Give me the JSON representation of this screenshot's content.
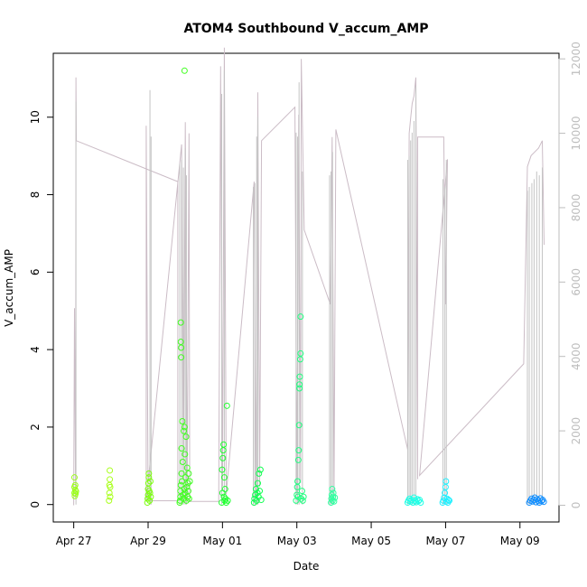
{
  "chart_data": {
    "type": "scatter",
    "title": "ATOM4 Southbound V_accum_AMP",
    "xlabel": "Date",
    "ylabel": "V_accum_AMP",
    "x_ticks": [
      "Apr 27",
      "Apr 29",
      "May 01",
      "May 03",
      "May 05",
      "May 07",
      "May 09"
    ],
    "x_tick_days": [
      0,
      2,
      4,
      6,
      8,
      10,
      12
    ],
    "x_range_days": [
      -0.55,
      13.05
    ],
    "y_left": {
      "ticks": [
        0,
        2,
        4,
        6,
        8,
        10
      ],
      "range": [
        -0.45,
        11.65
      ]
    },
    "y_right": {
      "ticks": [
        0,
        2000,
        4000,
        6000,
        8000,
        10000,
        12000
      ],
      "range": [
        -450,
        12150
      ],
      "color": "#bdbdbd"
    },
    "colors": {
      "line": "#c4c4c4",
      "secondary_line": "#cbbcc6"
    },
    "points": [
      {
        "x": 0.02,
        "y": 0.3,
        "c": "#9cff1a"
      },
      {
        "x": 0.02,
        "y": 0.45,
        "c": "#9cff1a"
      },
      {
        "x": 0.02,
        "y": 0.7,
        "c": "#9cff1a"
      },
      {
        "x": 0.03,
        "y": 0.22,
        "c": "#9cff1a"
      },
      {
        "x": 0.04,
        "y": 0.38,
        "c": "#9cff1a"
      },
      {
        "x": 0.04,
        "y": 0.5,
        "c": "#9cff1a"
      },
      {
        "x": 0.05,
        "y": 0.28,
        "c": "#9cff1a"
      },
      {
        "x": 0.06,
        "y": 0.34,
        "c": "#9cff1a"
      },
      {
        "x": 0.95,
        "y": 0.1,
        "c": "#a8ff1a"
      },
      {
        "x": 0.96,
        "y": 0.3,
        "c": "#a8ff1a"
      },
      {
        "x": 0.96,
        "y": 0.5,
        "c": "#a8ff1a"
      },
      {
        "x": 0.97,
        "y": 0.65,
        "c": "#a8ff1a"
      },
      {
        "x": 0.97,
        "y": 0.88,
        "c": "#a8ff1a"
      },
      {
        "x": 0.98,
        "y": 0.2,
        "c": "#a8ff1a"
      },
      {
        "x": 0.98,
        "y": 0.45,
        "c": "#a8ff1a"
      },
      {
        "x": 1.98,
        "y": 0.05,
        "c": "#7dff10"
      },
      {
        "x": 1.99,
        "y": 0.15,
        "c": "#7dff10"
      },
      {
        "x": 2.0,
        "y": 0.25,
        "c": "#7dff10"
      },
      {
        "x": 2.0,
        "y": 0.4,
        "c": "#7dff10"
      },
      {
        "x": 2.01,
        "y": 0.55,
        "c": "#7dff10"
      },
      {
        "x": 2.02,
        "y": 0.7,
        "c": "#7dff10"
      },
      {
        "x": 2.02,
        "y": 0.8,
        "c": "#7dff10"
      },
      {
        "x": 2.03,
        "y": 0.35,
        "c": "#7dff10"
      },
      {
        "x": 2.04,
        "y": 0.1,
        "c": "#7dff10"
      },
      {
        "x": 2.05,
        "y": 0.3,
        "c": "#7dff10"
      },
      {
        "x": 2.06,
        "y": 0.6,
        "c": "#7dff10"
      },
      {
        "x": 2.07,
        "y": 0.2,
        "c": "#7dff10"
      },
      {
        "x": 2.85,
        "y": 0.05,
        "c": "#40ff20"
      },
      {
        "x": 2.86,
        "y": 0.1,
        "c": "#40ff20"
      },
      {
        "x": 2.87,
        "y": 0.2,
        "c": "#40ff20"
      },
      {
        "x": 2.87,
        "y": 0.35,
        "c": "#40ff20"
      },
      {
        "x": 2.88,
        "y": 0.5,
        "c": "#40ff20"
      },
      {
        "x": 2.88,
        "y": 4.7,
        "c": "#40ff20"
      },
      {
        "x": 2.88,
        "y": 4.2,
        "c": "#40ff20"
      },
      {
        "x": 2.89,
        "y": 4.05,
        "c": "#40ff20"
      },
      {
        "x": 2.89,
        "y": 3.8,
        "c": "#40ff20"
      },
      {
        "x": 2.9,
        "y": 1.45,
        "c": "#40ff20"
      },
      {
        "x": 2.9,
        "y": 0.8,
        "c": "#40ff20"
      },
      {
        "x": 2.91,
        "y": 0.6,
        "c": "#40ff20"
      },
      {
        "x": 2.92,
        "y": 2.15,
        "c": "#40ff20"
      },
      {
        "x": 2.93,
        "y": 1.1,
        "c": "#40ff20"
      },
      {
        "x": 2.94,
        "y": 0.25,
        "c": "#40ff20"
      },
      {
        "x": 2.95,
        "y": 0.15,
        "c": "#40ff20"
      },
      {
        "x": 2.96,
        "y": 1.9,
        "c": "#40ff20"
      },
      {
        "x": 2.97,
        "y": 0.4,
        "c": "#40ff20"
      },
      {
        "x": 2.98,
        "y": 11.2,
        "c": "#40ff20"
      },
      {
        "x": 2.98,
        "y": 2.0,
        "c": "#40ff20"
      },
      {
        "x": 2.99,
        "y": 1.3,
        "c": "#40ff20"
      },
      {
        "x": 3.0,
        "y": 0.3,
        "c": "#40ff20"
      },
      {
        "x": 3.01,
        "y": 0.7,
        "c": "#40ff20"
      },
      {
        "x": 3.02,
        "y": 1.75,
        "c": "#40ff20"
      },
      {
        "x": 3.03,
        "y": 0.1,
        "c": "#40ff20"
      },
      {
        "x": 3.04,
        "y": 0.45,
        "c": "#40ff20"
      },
      {
        "x": 3.05,
        "y": 0.95,
        "c": "#40ff20"
      },
      {
        "x": 3.06,
        "y": 0.2,
        "c": "#40ff20"
      },
      {
        "x": 3.07,
        "y": 0.55,
        "c": "#40ff20"
      },
      {
        "x": 3.08,
        "y": 0.35,
        "c": "#40ff20"
      },
      {
        "x": 3.09,
        "y": 0.8,
        "c": "#40ff20"
      },
      {
        "x": 3.1,
        "y": 0.15,
        "c": "#40ff20"
      },
      {
        "x": 3.12,
        "y": 0.6,
        "c": "#40ff20"
      },
      {
        "x": 3.98,
        "y": 0.05,
        "c": "#20ff30"
      },
      {
        "x": 3.99,
        "y": 0.9,
        "c": "#20ff30"
      },
      {
        "x": 4.0,
        "y": 0.3,
        "c": "#20ff30"
      },
      {
        "x": 4.01,
        "y": 1.2,
        "c": "#20ff30"
      },
      {
        "x": 4.02,
        "y": 1.4,
        "c": "#20ff30"
      },
      {
        "x": 4.03,
        "y": 1.55,
        "c": "#20ff30"
      },
      {
        "x": 4.04,
        "y": 0.2,
        "c": "#20ff30"
      },
      {
        "x": 4.05,
        "y": 0.7,
        "c": "#20ff30"
      },
      {
        "x": 4.06,
        "y": 0.1,
        "c": "#20ff30"
      },
      {
        "x": 4.07,
        "y": 0.4,
        "c": "#20ff30"
      },
      {
        "x": 4.08,
        "y": 0.15,
        "c": "#20ff30"
      },
      {
        "x": 4.1,
        "y": 0.05,
        "c": "#20ff30"
      },
      {
        "x": 4.12,
        "y": 2.55,
        "c": "#20ff30"
      },
      {
        "x": 4.14,
        "y": 0.1,
        "c": "#20ff30"
      },
      {
        "x": 4.85,
        "y": 0.05,
        "c": "#10ff50"
      },
      {
        "x": 4.86,
        "y": 0.15,
        "c": "#10ff50"
      },
      {
        "x": 4.88,
        "y": 0.25,
        "c": "#10ff50"
      },
      {
        "x": 4.9,
        "y": 0.4,
        "c": "#10ff50"
      },
      {
        "x": 4.92,
        "y": 0.1,
        "c": "#10ff50"
      },
      {
        "x": 4.94,
        "y": 0.3,
        "c": "#10ff50"
      },
      {
        "x": 4.95,
        "y": 0.55,
        "c": "#10ff50"
      },
      {
        "x": 4.97,
        "y": 0.2,
        "c": "#10ff50"
      },
      {
        "x": 4.98,
        "y": 0.8,
        "c": "#10ff50"
      },
      {
        "x": 5.0,
        "y": 0.35,
        "c": "#10ff50"
      },
      {
        "x": 5.02,
        "y": 0.9,
        "c": "#10ff50"
      },
      {
        "x": 5.04,
        "y": 0.12,
        "c": "#10ff50"
      },
      {
        "x": 5.98,
        "y": 0.1,
        "c": "#20ff80"
      },
      {
        "x": 6.0,
        "y": 0.25,
        "c": "#20ff80"
      },
      {
        "x": 6.01,
        "y": 0.45,
        "c": "#20ff80"
      },
      {
        "x": 6.02,
        "y": 0.6,
        "c": "#20ff80"
      },
      {
        "x": 6.03,
        "y": 0.2,
        "c": "#20ff80"
      },
      {
        "x": 6.04,
        "y": 1.15,
        "c": "#20ff80"
      },
      {
        "x": 6.05,
        "y": 1.4,
        "c": "#20ff80"
      },
      {
        "x": 6.06,
        "y": 2.05,
        "c": "#20ff80"
      },
      {
        "x": 6.07,
        "y": 3.0,
        "c": "#20ff80"
      },
      {
        "x": 6.07,
        "y": 3.1,
        "c": "#20ff80"
      },
      {
        "x": 6.08,
        "y": 3.3,
        "c": "#20ff80"
      },
      {
        "x": 6.09,
        "y": 3.75,
        "c": "#20ff80"
      },
      {
        "x": 6.1,
        "y": 3.9,
        "c": "#20ff80"
      },
      {
        "x": 6.1,
        "y": 4.85,
        "c": "#20ff80"
      },
      {
        "x": 6.12,
        "y": 0.15,
        "c": "#20ff80"
      },
      {
        "x": 6.14,
        "y": 0.35,
        "c": "#20ff80"
      },
      {
        "x": 6.16,
        "y": 0.1,
        "c": "#20ff80"
      },
      {
        "x": 6.18,
        "y": 0.2,
        "c": "#20ff80"
      },
      {
        "x": 6.92,
        "y": 0.05,
        "c": "#30ffa0"
      },
      {
        "x": 6.93,
        "y": 0.15,
        "c": "#30ffa0"
      },
      {
        "x": 6.94,
        "y": 0.25,
        "c": "#30ffa0"
      },
      {
        "x": 6.95,
        "y": 0.4,
        "c": "#30ffa0"
      },
      {
        "x": 6.96,
        "y": 0.1,
        "c": "#30ffa0"
      },
      {
        "x": 6.97,
        "y": 0.2,
        "c": "#30ffa0"
      },
      {
        "x": 6.98,
        "y": 0.3,
        "c": "#30ffa0"
      },
      {
        "x": 7.0,
        "y": 0.08,
        "c": "#30ffa0"
      },
      {
        "x": 7.02,
        "y": 0.18,
        "c": "#30ffa0"
      },
      {
        "x": 8.98,
        "y": 0.05,
        "c": "#20ffe6"
      },
      {
        "x": 9.0,
        "y": 0.1,
        "c": "#20ffe6"
      },
      {
        "x": 9.03,
        "y": 0.15,
        "c": "#20ffe6"
      },
      {
        "x": 9.06,
        "y": 0.08,
        "c": "#20ffe6"
      },
      {
        "x": 9.09,
        "y": 0.12,
        "c": "#20ffe6"
      },
      {
        "x": 9.12,
        "y": 0.05,
        "c": "#20ffe6"
      },
      {
        "x": 9.15,
        "y": 0.18,
        "c": "#20ffe6"
      },
      {
        "x": 9.18,
        "y": 0.1,
        "c": "#20ffe6"
      },
      {
        "x": 9.21,
        "y": 0.06,
        "c": "#20ffe6"
      },
      {
        "x": 9.24,
        "y": 0.14,
        "c": "#20ffe6"
      },
      {
        "x": 9.27,
        "y": 0.09,
        "c": "#20ffe6"
      },
      {
        "x": 9.3,
        "y": 0.12,
        "c": "#20ffe6"
      },
      {
        "x": 9.33,
        "y": 0.05,
        "c": "#20ffe6"
      },
      {
        "x": 9.92,
        "y": 0.05,
        "c": "#20f0ff"
      },
      {
        "x": 9.94,
        "y": 0.1,
        "c": "#20f0ff"
      },
      {
        "x": 9.96,
        "y": 0.18,
        "c": "#20f0ff"
      },
      {
        "x": 9.98,
        "y": 0.3,
        "c": "#20f0ff"
      },
      {
        "x": 10.0,
        "y": 0.45,
        "c": "#20f0ff"
      },
      {
        "x": 10.01,
        "y": 0.6,
        "c": "#20f0ff"
      },
      {
        "x": 10.02,
        "y": 0.08,
        "c": "#20f0ff"
      },
      {
        "x": 10.04,
        "y": 0.15,
        "c": "#20f0ff"
      },
      {
        "x": 10.06,
        "y": 0.05,
        "c": "#20f0ff"
      },
      {
        "x": 10.08,
        "y": 0.12,
        "c": "#20f0ff"
      },
      {
        "x": 10.1,
        "y": 0.1,
        "c": "#20f0ff"
      },
      {
        "x": 12.25,
        "y": 0.05,
        "c": "#1490ff"
      },
      {
        "x": 12.28,
        "y": 0.1,
        "c": "#1490ff"
      },
      {
        "x": 12.31,
        "y": 0.15,
        "c": "#1490ff"
      },
      {
        "x": 12.34,
        "y": 0.08,
        "c": "#1490ff"
      },
      {
        "x": 12.37,
        "y": 0.12,
        "c": "#1490ff"
      },
      {
        "x": 12.4,
        "y": 0.18,
        "c": "#1490ff"
      },
      {
        "x": 12.43,
        "y": 0.06,
        "c": "#1490ff"
      },
      {
        "x": 12.46,
        "y": 0.14,
        "c": "#1490ff"
      },
      {
        "x": 12.49,
        "y": 0.1,
        "c": "#1490ff"
      },
      {
        "x": 12.52,
        "y": 0.05,
        "c": "#1490ff"
      },
      {
        "x": 12.55,
        "y": 0.16,
        "c": "#1490ff"
      },
      {
        "x": 12.58,
        "y": 0.09,
        "c": "#1490ff"
      },
      {
        "x": 12.61,
        "y": 0.12,
        "c": "#1490ff"
      },
      {
        "x": 12.64,
        "y": 0.07,
        "c": "#1490ff"
      }
    ],
    "secondary_series": [
      {
        "x": 0.0,
        "y": 0
      },
      {
        "x": 0.02,
        "y": 5300
      },
      {
        "x": 0.05,
        "y": 200
      },
      {
        "x": 0.06,
        "y": 11500
      },
      {
        "x": 0.07,
        "y": 9800
      },
      {
        "x": 2.8,
        "y": 8700
      },
      {
        "x": 2.8,
        "y": 120
      },
      {
        "x": 2.0,
        "y": 120
      },
      {
        "x": 1.95,
        "y": 10200
      },
      {
        "x": 1.95,
        "y": 100
      },
      {
        "x": 2.9,
        "y": 9700
      },
      {
        "x": 2.95,
        "y": 200
      },
      {
        "x": 3.0,
        "y": 10300
      },
      {
        "x": 3.05,
        "y": 100
      },
      {
        "x": 3.1,
        "y": 10000
      },
      {
        "x": 3.12,
        "y": 100
      },
      {
        "x": 3.9,
        "y": 100
      },
      {
        "x": 3.95,
        "y": 11800
      },
      {
        "x": 4.0,
        "y": 500
      },
      {
        "x": 4.05,
        "y": 12300
      },
      {
        "x": 4.1,
        "y": 300
      },
      {
        "x": 4.85,
        "y": 8700
      },
      {
        "x": 4.9,
        "y": 200
      },
      {
        "x": 4.95,
        "y": 11100
      },
      {
        "x": 5.0,
        "y": 500
      },
      {
        "x": 5.05,
        "y": 9800
      },
      {
        "x": 5.95,
        "y": 10700
      },
      {
        "x": 6.0,
        "y": 300
      },
      {
        "x": 6.05,
        "y": 10500
      },
      {
        "x": 6.1,
        "y": 600
      },
      {
        "x": 6.12,
        "y": 12000
      },
      {
        "x": 6.2,
        "y": 7400
      },
      {
        "x": 6.9,
        "y": 5400
      },
      {
        "x": 6.95,
        "y": 9900
      },
      {
        "x": 7.0,
        "y": 200
      },
      {
        "x": 7.05,
        "y": 10100
      },
      {
        "x": 8.98,
        "y": 1500
      },
      {
        "x": 9.02,
        "y": 10000
      },
      {
        "x": 9.06,
        "y": 10400
      },
      {
        "x": 9.1,
        "y": 10800
      },
      {
        "x": 9.15,
        "y": 11000
      },
      {
        "x": 9.2,
        "y": 11500
      },
      {
        "x": 9.25,
        "y": 700
      },
      {
        "x": 9.25,
        "y": 9900
      },
      {
        "x": 9.95,
        "y": 9900
      },
      {
        "x": 10.0,
        "y": 5400
      },
      {
        "x": 10.05,
        "y": 9300
      },
      {
        "x": 9.3,
        "y": 800
      },
      {
        "x": 12.1,
        "y": 3800
      },
      {
        "x": 12.2,
        "y": 9100
      },
      {
        "x": 12.3,
        "y": 9400
      },
      {
        "x": 12.4,
        "y": 9500
      },
      {
        "x": 12.5,
        "y": 9600
      },
      {
        "x": 12.6,
        "y": 9800
      },
      {
        "x": 12.65,
        "y": 7000
      }
    ],
    "spikes": [
      {
        "x": 0.06,
        "y": 10.4
      },
      {
        "x": 2.05,
        "y": 10.7
      },
      {
        "x": 2.08,
        "y": 9.5
      },
      {
        "x": 2.85,
        "y": 8.8
      },
      {
        "x": 2.9,
        "y": 8.9
      },
      {
        "x": 2.95,
        "y": 8.7
      },
      {
        "x": 3.0,
        "y": 9.2
      },
      {
        "x": 3.03,
        "y": 8.5
      },
      {
        "x": 3.98,
        "y": 10.6
      },
      {
        "x": 4.05,
        "y": 11.2
      },
      {
        "x": 4.83,
        "y": 8.2
      },
      {
        "x": 4.87,
        "y": 8.3
      },
      {
        "x": 4.92,
        "y": 9.5
      },
      {
        "x": 4.95,
        "y": 10.0
      },
      {
        "x": 5.98,
        "y": 9.6
      },
      {
        "x": 6.02,
        "y": 9.5
      },
      {
        "x": 6.06,
        "y": 10.9
      },
      {
        "x": 6.15,
        "y": 8.6
      },
      {
        "x": 6.88,
        "y": 8.5
      },
      {
        "x": 6.92,
        "y": 8.6
      },
      {
        "x": 6.96,
        "y": 9.1
      },
      {
        "x": 8.98,
        "y": 8.9
      },
      {
        "x": 9.02,
        "y": 9.0
      },
      {
        "x": 9.06,
        "y": 9.4
      },
      {
        "x": 9.1,
        "y": 9.6
      },
      {
        "x": 9.15,
        "y": 9.9
      },
      {
        "x": 9.2,
        "y": 10.8
      },
      {
        "x": 9.93,
        "y": 8.4
      },
      {
        "x": 9.98,
        "y": 8.2
      },
      {
        "x": 10.02,
        "y": 8.9
      },
      {
        "x": 12.2,
        "y": 8.1
      },
      {
        "x": 12.25,
        "y": 8.2
      },
      {
        "x": 12.32,
        "y": 8.3
      },
      {
        "x": 12.38,
        "y": 8.4
      },
      {
        "x": 12.45,
        "y": 8.6
      },
      {
        "x": 12.52,
        "y": 8.5
      },
      {
        "x": 12.6,
        "y": 8.7
      }
    ],
    "grid": false,
    "legend": "none"
  }
}
